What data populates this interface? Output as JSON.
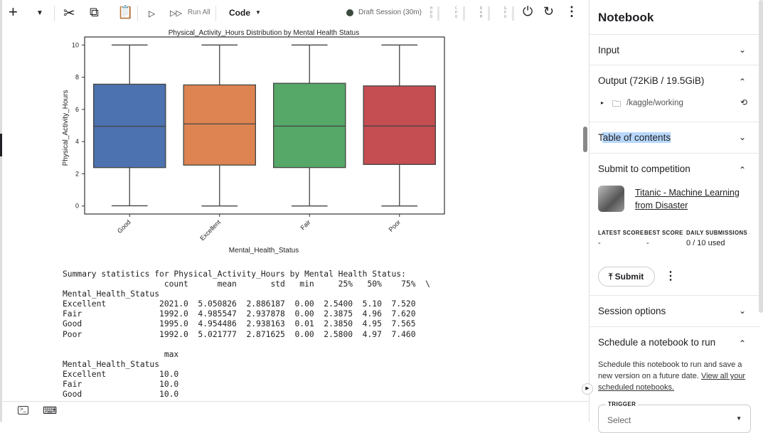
{
  "toolbar": {
    "run_all": "Run All",
    "cell_type": "Code",
    "session": "Draft Session (30m)",
    "meters": [
      "HDD",
      "CPU",
      "RAM",
      "GPU"
    ]
  },
  "chart_data": {
    "type": "box",
    "title": "Physical_Activity_Hours Distribution by Mental Health Status",
    "xlabel": "Mental_Health_Status",
    "ylabel": "Physical_Activity_Hours",
    "ylim": [
      -0.5,
      10.5
    ],
    "yticks": [
      "0",
      "2",
      "4",
      "6",
      "8",
      "10"
    ],
    "categories": [
      "Good",
      "Excellent",
      "Fair",
      "Poor"
    ],
    "colors": [
      "#4c72b0",
      "#dd8452",
      "#55a868",
      "#c44e52"
    ],
    "boxes": [
      {
        "min": 0.01,
        "q1": 2.385,
        "median": 4.95,
        "q3": 7.565,
        "max": 10.0
      },
      {
        "min": 0.0,
        "q1": 2.54,
        "median": 5.1,
        "q3": 7.52,
        "max": 10.0
      },
      {
        "min": 0.0,
        "q1": 2.3875,
        "median": 4.96,
        "q3": 7.62,
        "max": 10.0
      },
      {
        "min": 0.0,
        "q1": 2.58,
        "median": 4.97,
        "q3": 7.46,
        "max": 10.0
      }
    ]
  },
  "stats_text": "Summary statistics for Physical_Activity_Hours by Mental Health Status:\n                     count      mean       std   min     25%   50%    75%  \\\nMental_Health_Status                                                        \nExcellent           2021.0  5.050826  2.886187  0.00  2.5400  5.10  7.520   \nFair                1992.0  4.985547  2.937878  0.00  2.3875  4.96  7.620   \nGood                1995.0  4.954486  2.938163  0.01  2.3850  4.95  7.565   \nPoor                1992.0  5.021777  2.871625  0.00  2.5800  4.97  7.460   \n\n                     max  \nMental_Health_Status      \nExcellent           10.0  \nFair                10.0  \nGood                10.0  ",
  "sidebar": {
    "title": "Notebook",
    "input": "Input",
    "output": "Output (72KiB / 19.5GiB)",
    "output_path": "/kaggle/working",
    "toc": "Table of contents",
    "submit_section": "Submit to competition",
    "competition": "Titanic - Machine Learning from Disaster",
    "score_headers": [
      "LATEST SCORE",
      "BEST SCORE",
      "DAILY SUBMISSIONS"
    ],
    "score_values": [
      "-",
      "-",
      "0 / 10 used"
    ],
    "submit": "Submit",
    "session_options": "Session options",
    "schedule": "Schedule a notebook to run",
    "schedule_text": "Schedule this notebook to run and save a new version on a future date. ",
    "schedule_link": "View all your scheduled notebooks.",
    "trigger": "TRIGGER",
    "trigger_value": "Select"
  }
}
